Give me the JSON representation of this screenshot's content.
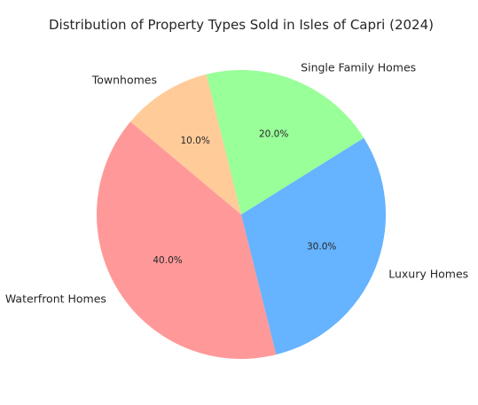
{
  "chart_data": {
    "type": "pie",
    "title": "Distribution of Property Types Sold in Isles of Capri (2024)",
    "categories": [
      "Waterfront Homes",
      "Luxury Homes",
      "Single Family Homes",
      "Townhomes"
    ],
    "values": [
      40.0,
      30.0,
      20.0,
      10.0
    ],
    "percent_labels": [
      "40.0%",
      "30.0%",
      "20.0%",
      "10.0%"
    ],
    "colors": [
      "#ff9999",
      "#66b3ff",
      "#99ff99",
      "#ffcc99"
    ],
    "start_angle_deg": 140,
    "direction": "counterclockwise",
    "legend": "none"
  }
}
